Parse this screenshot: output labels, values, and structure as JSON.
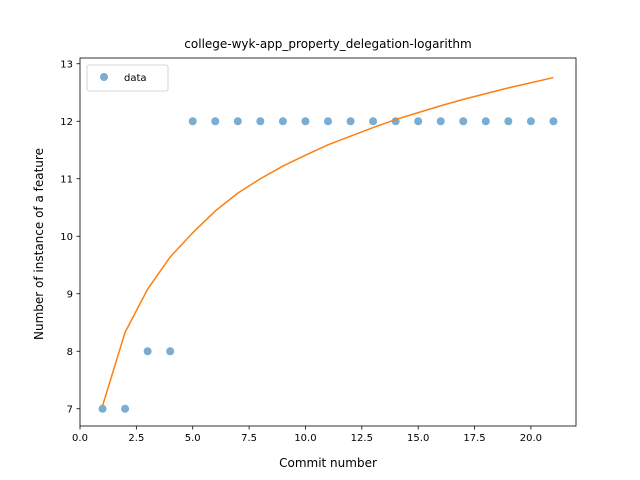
{
  "chart_data": {
    "type": "scatter",
    "title": "college-wyk-app_property_delegation-logarithm",
    "xlabel": "Commit number",
    "ylabel": "Number of instance of a feature",
    "xlim": [
      0.0,
      22.0
    ],
    "ylim": [
      6.7,
      13.1
    ],
    "x_ticks": [
      0.0,
      2.5,
      5.0,
      7.5,
      10.0,
      12.5,
      15.0,
      17.5,
      20.0
    ],
    "x_tick_labels": [
      "0.0",
      "2.5",
      "5.0",
      "7.5",
      "10.0",
      "12.5",
      "15.0",
      "17.5",
      "20.0"
    ],
    "y_ticks": [
      7,
      8,
      9,
      10,
      11,
      12,
      13
    ],
    "y_tick_labels": [
      "7",
      "8",
      "9",
      "10",
      "11",
      "12",
      "13"
    ],
    "grid": false,
    "legend_position": "top-left",
    "series": [
      {
        "name": "data",
        "kind": "scatter",
        "color": "#1f77b4",
        "x": [
          1,
          2,
          3,
          4,
          5,
          6,
          7,
          8,
          9,
          10,
          11,
          12,
          13,
          14,
          15,
          16,
          17,
          18,
          19,
          20,
          21
        ],
        "y": [
          7,
          7,
          8,
          8,
          12,
          12,
          12,
          12,
          12,
          12,
          12,
          12,
          12,
          12,
          12,
          12,
          12,
          12,
          12,
          12,
          12
        ]
      },
      {
        "kind": "line",
        "color": "#ff7f0e",
        "x": [
          1,
          2,
          3,
          4,
          5,
          6,
          7,
          8,
          9,
          10,
          11,
          12,
          13,
          14,
          15,
          16,
          17,
          18,
          19,
          20,
          21
        ],
        "y": [
          7.05,
          8.33,
          9.08,
          9.64,
          10.06,
          10.44,
          10.75,
          11.0,
          11.22,
          11.41,
          11.59,
          11.74,
          11.89,
          12.03,
          12.15,
          12.27,
          12.38,
          12.48,
          12.58,
          12.67,
          12.76
        ]
      }
    ]
  }
}
